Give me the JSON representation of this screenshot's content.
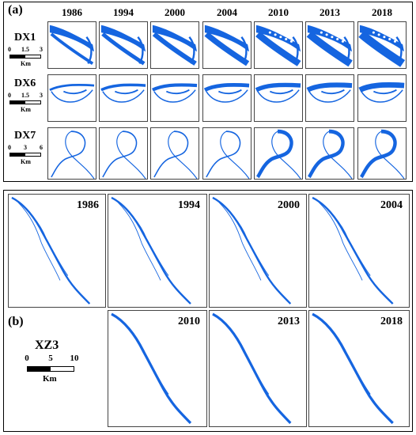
{
  "panel_a": {
    "label": "(a)",
    "years": [
      "1986",
      "1994",
      "2000",
      "2004",
      "2010",
      "2013",
      "2018"
    ],
    "rows": [
      {
        "site": "DX1",
        "scale_labels": [
          "0",
          "1.5",
          "3"
        ],
        "unit": "Km"
      },
      {
        "site": "DX6",
        "scale_labels": [
          "0",
          "1.5",
          "3"
        ],
        "unit": "Km"
      },
      {
        "site": "DX7",
        "scale_labels": [
          "0",
          "3",
          "6"
        ],
        "unit": "Km"
      }
    ]
  },
  "panel_b": {
    "label": "(b)",
    "site": "XZ3",
    "scale_labels": [
      "0",
      "5",
      "10"
    ],
    "unit": "Km",
    "top_years": [
      "1986",
      "1994",
      "2000",
      "2004"
    ],
    "bottom_years": [
      "2010",
      "2013",
      "2018"
    ]
  },
  "colors": {
    "river": "#1565e0",
    "border": "#000000"
  }
}
